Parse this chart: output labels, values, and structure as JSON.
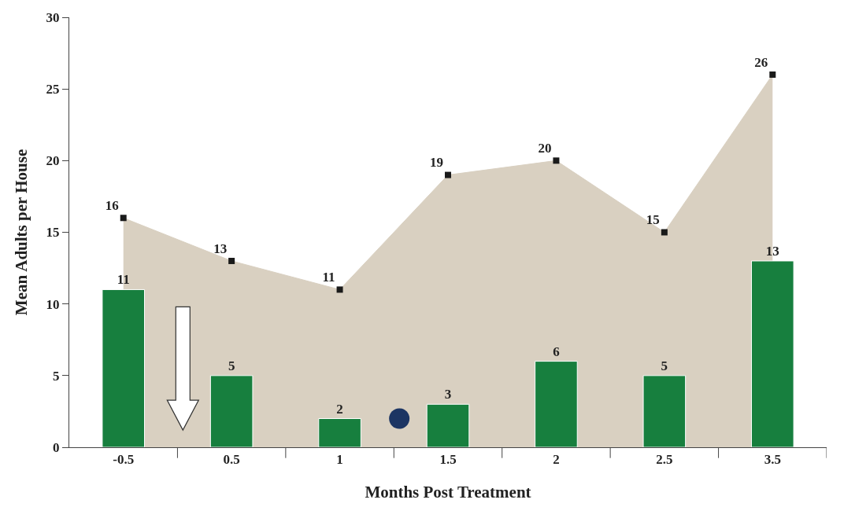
{
  "chart_data": {
    "type": "bar",
    "xlabel": "Months Post Treatment",
    "ylabel": "Mean Adults per House",
    "categories": [
      "-0.5",
      "0.5",
      "1",
      "1.5",
      "2",
      "2.5",
      "3.5"
    ],
    "series": [
      {
        "type": "area",
        "color": "#d9d0c1",
        "values": [
          16,
          13,
          11,
          19,
          20,
          15,
          26
        ]
      },
      {
        "color": "#177f3e",
        "values": [
          11,
          5,
          2,
          3,
          6,
          5,
          13
        ]
      }
    ],
    "ylim": [
      0,
      30
    ],
    "yticks": [
      0,
      5,
      10,
      15,
      20,
      25,
      30
    ],
    "grid": false,
    "data_labels": true,
    "marker": "square"
  }
}
